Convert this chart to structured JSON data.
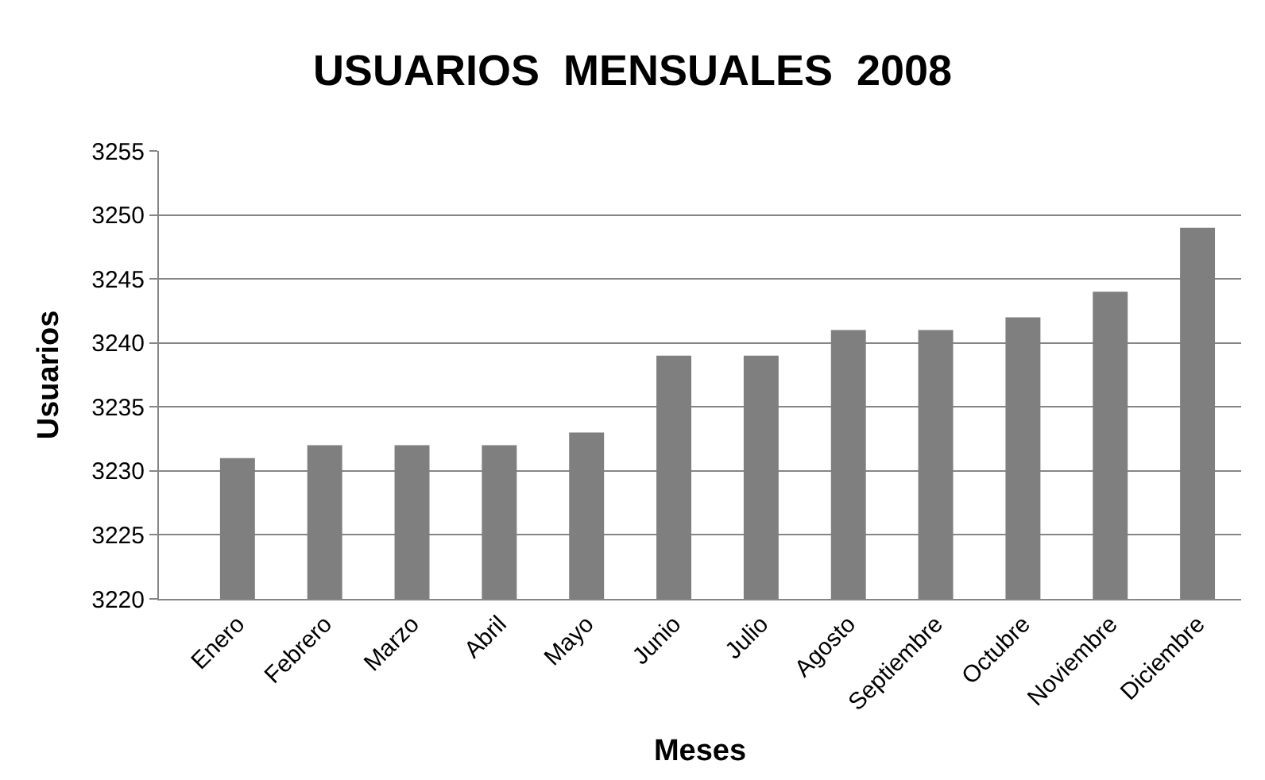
{
  "chart_data": {
    "type": "bar",
    "title": "USUARIOS  MENSUALES  2008",
    "xlabel": "Meses",
    "ylabel": "Usuarios",
    "categories": [
      "Enero",
      "Febrero",
      "Marzo",
      "Abril",
      "Mayo",
      "Junio",
      "Julio",
      "Agosto",
      "Septiembre",
      "Octubre",
      "Noviembre",
      "Diciembre"
    ],
    "values": [
      3231,
      3232,
      3232,
      3232,
      3233,
      3239,
      3239,
      3241,
      3241,
      3242,
      3244,
      3249
    ],
    "color": "#7f7f7f",
    "ylim": [
      3220,
      3255
    ],
    "yticks": [
      3220,
      3225,
      3230,
      3235,
      3240,
      3245,
      3250,
      3255
    ],
    "grid": "y"
  }
}
